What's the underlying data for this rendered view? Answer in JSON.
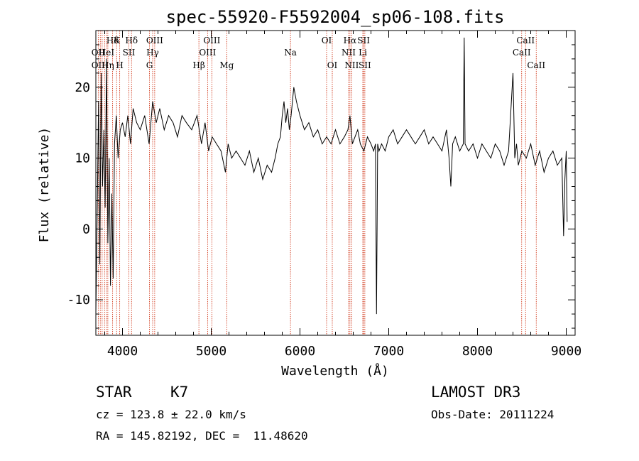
{
  "chart_data": {
    "type": "line",
    "title": "spec-55920-F5592004_sp06-108.fits",
    "xlabel": "Wavelength (Å)",
    "ylabel": "Flux (relative)",
    "xlim": [
      3700,
      9100
    ],
    "ylim": [
      -15,
      28
    ],
    "xticks": [
      4000,
      5000,
      6000,
      7000,
      8000,
      9000
    ],
    "yticks": [
      -10,
      0,
      10,
      20
    ],
    "series": [
      {
        "name": "flux",
        "x": [
          3700,
          3715,
          3730,
          3745,
          3760,
          3775,
          3790,
          3805,
          3820,
          3835,
          3850,
          3865,
          3880,
          3895,
          3910,
          3930,
          3950,
          3975,
          4000,
          4030,
          4060,
          4090,
          4120,
          4160,
          4200,
          4250,
          4300,
          4340,
          4380,
          4420,
          4470,
          4520,
          4570,
          4620,
          4670,
          4720,
          4780,
          4840,
          4890,
          4930,
          4970,
          5010,
          5060,
          5110,
          5160,
          5190,
          5230,
          5280,
          5330,
          5380,
          5430,
          5480,
          5530,
          5580,
          5630,
          5680,
          5720,
          5750,
          5780,
          5800,
          5820,
          5840,
          5860,
          5880,
          5900,
          5930,
          5960,
          6000,
          6050,
          6100,
          6150,
          6200,
          6250,
          6300,
          6350,
          6400,
          6450,
          6500,
          6540,
          6563,
          6590,
          6620,
          6650,
          6680,
          6720,
          6760,
          6800,
          6830,
          6850,
          6862,
          6875,
          6890,
          6920,
          6960,
          7000,
          7050,
          7100,
          7150,
          7200,
          7250,
          7300,
          7350,
          7400,
          7450,
          7500,
          7550,
          7600,
          7650,
          7680,
          7700,
          7720,
          7750,
          7800,
          7840,
          7850,
          7860,
          7900,
          7950,
          8000,
          8050,
          8100,
          8150,
          8200,
          8250,
          8300,
          8350,
          8400,
          8420,
          8440,
          8460,
          8500,
          8550,
          8600,
          8650,
          8700,
          8750,
          8800,
          8850,
          8900,
          8950,
          8970,
          8985,
          9000,
          9010
        ],
        "y": [
          -12,
          2,
          18,
          -5,
          22,
          6,
          14,
          3,
          24,
          -2,
          10,
          -8,
          5,
          -7,
          12,
          16,
          10,
          14,
          15,
          13,
          16,
          12,
          17,
          15,
          14,
          16,
          12,
          18,
          15,
          17,
          14,
          16,
          15,
          13,
          16,
          15,
          14,
          16,
          12,
          15,
          11,
          13,
          12,
          11,
          8,
          12,
          10,
          11,
          10,
          9,
          11,
          8,
          10,
          7,
          9,
          8,
          10,
          12,
          13,
          16,
          18,
          15,
          17,
          14,
          16,
          20,
          18,
          16,
          14,
          15,
          13,
          14,
          12,
          13,
          12,
          14,
          12,
          13,
          14,
          16,
          12,
          13,
          14,
          12,
          11,
          13,
          12,
          11,
          12,
          -12,
          12,
          11,
          12,
          11,
          13,
          14,
          12,
          13,
          14,
          13,
          12,
          13,
          14,
          12,
          13,
          12,
          11,
          14,
          10,
          6,
          12,
          13,
          11,
          12,
          27,
          12,
          11,
          12,
          10,
          12,
          11,
          10,
          12,
          11,
          9,
          11,
          22,
          10,
          12,
          9,
          11,
          10,
          12,
          9,
          11,
          8,
          10,
          11,
          9,
          10,
          -1,
          7,
          11,
          1
        ],
        "unit": "relative"
      }
    ],
    "line_labels": [
      {
        "name": "Hδ",
        "row": 1,
        "x": 3889
      },
      {
        "name": "K",
        "row": 1,
        "x": 3934
      },
      {
        "name": "Hδ",
        "row": 1,
        "x": 4102
      },
      {
        "name": "OIII",
        "row": 1,
        "x": 4363
      },
      {
        "name": "OIII",
        "row": 1,
        "x": 5007
      },
      {
        "name": "OI",
        "row": 1,
        "x": 6300
      },
      {
        "name": "Hα",
        "row": 1,
        "x": 6563
      },
      {
        "name": "SII",
        "row": 1,
        "x": 6717
      },
      {
        "name": "CaII",
        "row": 1,
        "x": 8542
      },
      {
        "name": "OII",
        "row": 2,
        "x": 3727
      },
      {
        "name": "HeI",
        "row": 2,
        "x": 3820
      },
      {
        "name": "SII",
        "row": 2,
        "x": 4072
      },
      {
        "name": "Hγ",
        "row": 2,
        "x": 4340
      },
      {
        "name": "OIII",
        "row": 2,
        "x": 4959
      },
      {
        "name": "Na",
        "row": 2,
        "x": 5893
      },
      {
        "name": "NII",
        "row": 2,
        "x": 6548
      },
      {
        "name": "Li",
        "row": 2,
        "x": 6708
      },
      {
        "name": "CaII",
        "row": 2,
        "x": 8498
      },
      {
        "name": "OII",
        "row": 3,
        "x": 3727
      },
      {
        "name": "Hη",
        "row": 3,
        "x": 3835
      },
      {
        "name": "H",
        "row": 3,
        "x": 3969
      },
      {
        "name": "G",
        "row": 3,
        "x": 4304
      },
      {
        "name": "Hβ",
        "row": 3,
        "x": 4861
      },
      {
        "name": "Mg",
        "row": 3,
        "x": 5175
      },
      {
        "name": "OI",
        "row": 3,
        "x": 6364
      },
      {
        "name": "NII",
        "row": 3,
        "x": 6583
      },
      {
        "name": "SII",
        "row": 3,
        "x": 6731
      },
      {
        "name": "CaII",
        "row": 3,
        "x": 8662
      }
    ],
    "marker_lines": [
      3727,
      3750,
      3771,
      3798,
      3820,
      3835,
      3889,
      3934,
      3969,
      4072,
      4102,
      4304,
      4340,
      4363,
      4861,
      4959,
      5007,
      5175,
      5893,
      6300,
      6364,
      6548,
      6563,
      6583,
      6708,
      6717,
      6731,
      8498,
      8542,
      8662
    ]
  },
  "info": {
    "object_type": "STAR",
    "subclass": "K7",
    "survey": "LAMOST DR3",
    "cz_line": "cz = 123.8 ± 22.0 km/s",
    "obs_date": "Obs-Date: 20111224",
    "coords": "RA = 145.82192, DEC =  11.48620"
  },
  "colors": {
    "line": "#000000",
    "marker": "#cc2200",
    "axis": "#000000",
    "bg": "#ffffff"
  }
}
